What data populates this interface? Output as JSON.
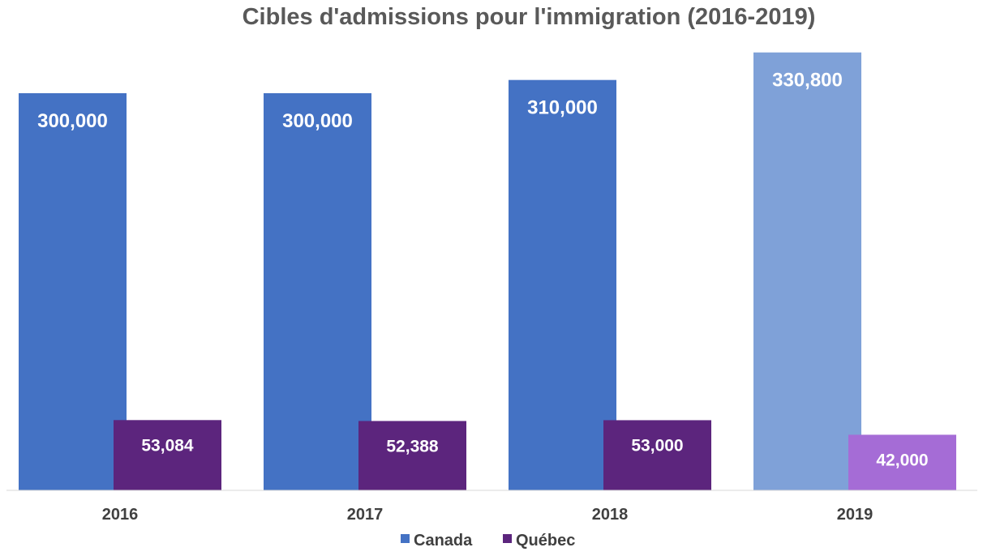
{
  "chart_data": {
    "type": "bar",
    "title": "Cibles d'admissions pour l'immigration (2016-2019)",
    "categories": [
      "2016",
      "2017",
      "2018",
      "2019"
    ],
    "series": [
      {
        "name": "Canada",
        "color": "#4472C4",
        "values": [
          300000,
          300000,
          310000,
          330800
        ],
        "labels": [
          "300,000",
          "300,000",
          "310,000",
          "330,800"
        ],
        "point_colors": [
          "#4472C4",
          "#4472C4",
          "#4472C4",
          "#7FA1D8"
        ]
      },
      {
        "name": "Québec",
        "color": "#5C257D",
        "values": [
          53084,
          52388,
          53000,
          42000
        ],
        "labels": [
          "53,084",
          "52,388",
          "53,000",
          "42,000"
        ],
        "point_colors": [
          "#5C257D",
          "#5C257D",
          "#5C257D",
          "#A56CD6"
        ]
      }
    ],
    "xlabel": "",
    "ylabel": "",
    "ylim": [
      0,
      340000
    ],
    "grid": false,
    "legend": "bottom",
    "colors": {
      "title": "#595959",
      "axis_text": "#404040",
      "data_label": "#ffffff",
      "axis_line": "#D9D9D9"
    }
  }
}
